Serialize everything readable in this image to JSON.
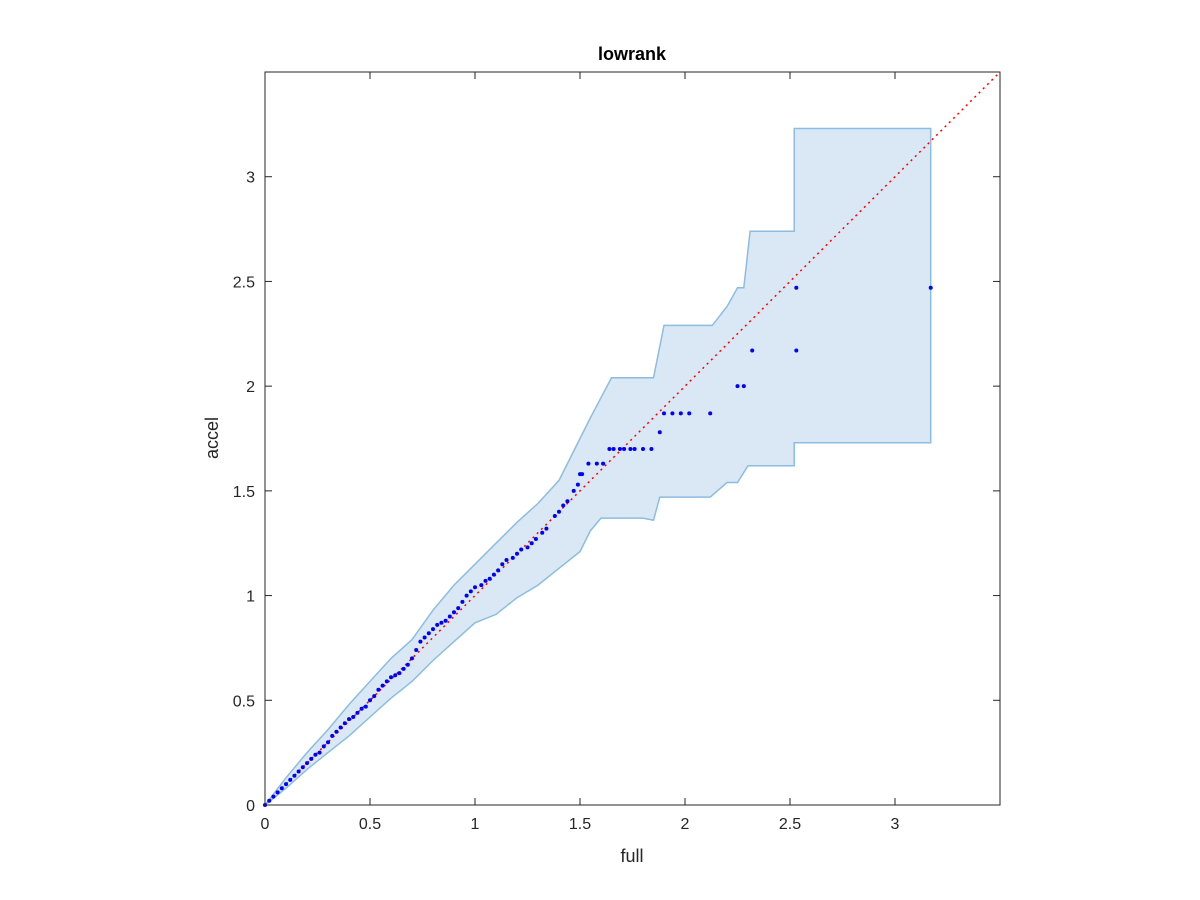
{
  "chart_data": {
    "type": "scatter",
    "title": "lowrank",
    "xlabel": "full",
    "ylabel": "accel",
    "xlim": [
      0,
      3.5
    ],
    "ylim": [
      0,
      3.5
    ],
    "xticks": [
      "0",
      "0.5",
      "1",
      "1.5",
      "2",
      "2.5",
      "3"
    ],
    "yticks": [
      "0",
      "0.5",
      "1",
      "1.5",
      "2",
      "2.5",
      "3"
    ],
    "grid": false,
    "reference_line": {
      "from": [
        0,
        0
      ],
      "to": [
        3.5,
        3.5
      ],
      "style": "dotted"
    },
    "confidence_band": {
      "upper": [
        [
          0,
          0
        ],
        [
          0.1,
          0.13
        ],
        [
          0.2,
          0.25
        ],
        [
          0.3,
          0.36
        ],
        [
          0.4,
          0.48
        ],
        [
          0.5,
          0.59
        ],
        [
          0.6,
          0.7
        ],
        [
          0.7,
          0.79
        ],
        [
          0.8,
          0.93
        ],
        [
          0.9,
          1.05
        ],
        [
          1.0,
          1.15
        ],
        [
          1.1,
          1.25
        ],
        [
          1.2,
          1.35
        ],
        [
          1.3,
          1.44
        ],
        [
          1.4,
          1.55
        ],
        [
          1.5,
          1.75
        ],
        [
          1.55,
          1.85
        ],
        [
          1.65,
          2.04
        ],
        [
          1.85,
          2.04
        ],
        [
          1.9,
          2.29
        ],
        [
          2.13,
          2.29
        ],
        [
          2.2,
          2.38
        ],
        [
          2.25,
          2.47
        ],
        [
          2.28,
          2.47
        ],
        [
          2.31,
          2.74
        ],
        [
          2.52,
          2.74
        ],
        [
          2.52,
          3.23
        ],
        [
          3.17,
          3.23
        ],
        [
          3.17,
          1.73
        ]
      ],
      "lower": [
        [
          3.17,
          1.73
        ],
        [
          2.52,
          1.73
        ],
        [
          2.52,
          1.62
        ],
        [
          2.3,
          1.62
        ],
        [
          2.25,
          1.54
        ],
        [
          2.2,
          1.54
        ],
        [
          2.12,
          1.47
        ],
        [
          1.88,
          1.47
        ],
        [
          1.85,
          1.36
        ],
        [
          1.8,
          1.37
        ],
        [
          1.6,
          1.37
        ],
        [
          1.55,
          1.31
        ],
        [
          1.5,
          1.21
        ],
        [
          1.4,
          1.13
        ],
        [
          1.3,
          1.05
        ],
        [
          1.2,
          0.99
        ],
        [
          1.1,
          0.91
        ],
        [
          1.0,
          0.87
        ],
        [
          0.9,
          0.78
        ],
        [
          0.8,
          0.69
        ],
        [
          0.7,
          0.59
        ],
        [
          0.6,
          0.51
        ],
        [
          0.5,
          0.42
        ],
        [
          0.4,
          0.33
        ],
        [
          0.3,
          0.25
        ],
        [
          0.2,
          0.17
        ],
        [
          0.1,
          0.08
        ],
        [
          0,
          0
        ]
      ]
    },
    "series": [
      {
        "x": [
          0,
          0.02,
          0.04,
          0.06,
          0.08,
          0.1,
          0.12,
          0.14,
          0.16,
          0.18,
          0.2,
          0.22,
          0.24,
          0.26,
          0.28,
          0.3,
          0.32,
          0.34,
          0.36,
          0.38,
          0.4,
          0.42,
          0.44,
          0.46,
          0.48,
          0.5,
          0.52,
          0.54,
          0.56,
          0.58,
          0.6,
          0.62,
          0.64,
          0.66,
          0.68,
          0.7,
          0.72,
          0.74,
          0.76,
          0.78,
          0.8,
          0.82,
          0.84,
          0.86,
          0.88,
          0.9,
          0.92,
          0.94,
          0.96,
          0.98,
          1.0,
          1.03,
          1.05,
          1.07,
          1.09,
          1.11,
          1.13,
          1.15,
          1.18,
          1.2,
          1.22,
          1.25,
          1.27,
          1.29,
          1.32,
          1.34,
          1.38,
          1.4,
          1.42,
          1.44,
          1.47,
          1.49,
          1.5,
          1.51,
          1.54,
          1.58,
          1.61,
          1.64,
          1.66,
          1.69,
          1.71,
          1.74,
          1.76,
          1.8,
          1.84,
          1.88,
          1.9,
          1.94,
          1.98,
          2.02,
          2.12,
          2.25,
          2.28,
          2.32,
          2.53,
          2.53,
          3.17
        ],
        "y": [
          0,
          0.02,
          0.04,
          0.06,
          0.08,
          0.1,
          0.12,
          0.14,
          0.16,
          0.18,
          0.2,
          0.22,
          0.24,
          0.25,
          0.28,
          0.3,
          0.33,
          0.35,
          0.37,
          0.39,
          0.41,
          0.42,
          0.44,
          0.46,
          0.47,
          0.5,
          0.52,
          0.55,
          0.57,
          0.59,
          0.61,
          0.62,
          0.63,
          0.65,
          0.67,
          0.7,
          0.74,
          0.78,
          0.8,
          0.82,
          0.84,
          0.86,
          0.87,
          0.88,
          0.9,
          0.92,
          0.94,
          0.97,
          1.0,
          1.02,
          1.04,
          1.05,
          1.07,
          1.08,
          1.1,
          1.12,
          1.15,
          1.17,
          1.18,
          1.2,
          1.22,
          1.23,
          1.25,
          1.27,
          1.3,
          1.32,
          1.38,
          1.4,
          1.43,
          1.45,
          1.5,
          1.53,
          1.58,
          1.58,
          1.63,
          1.63,
          1.63,
          1.7,
          1.7,
          1.7,
          1.7,
          1.7,
          1.7,
          1.7,
          1.7,
          1.78,
          1.87,
          1.87,
          1.87,
          1.87,
          1.87,
          2.0,
          2.0,
          2.17,
          2.17,
          2.47,
          2.47
        ]
      }
    ],
    "colors": {
      "points": "#0000ff",
      "reference_line": "#ff0000",
      "band_fill": "#d9e8f4",
      "band_edge": "#8cbde0",
      "axes": "#262626"
    }
  }
}
